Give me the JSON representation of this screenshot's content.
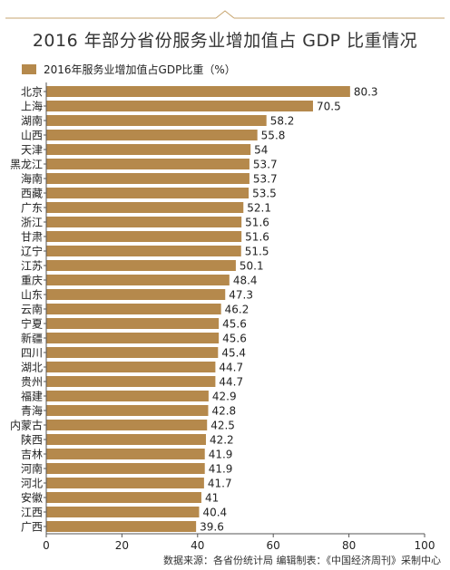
{
  "header": {
    "title": "2016 年部分省份服务业增加值占 GDP 比重情况"
  },
  "legend": {
    "label": "2016年服务业增加值占GDP比重（%）"
  },
  "footer": {
    "source": "数据来源：各省份统计局   编辑制表：《中国经济周刊》采制中心"
  },
  "colors": {
    "bar": "#B5894C",
    "axis": "#555555",
    "frame": "#C7A56F"
  },
  "chart_data": {
    "type": "bar",
    "orientation": "horizontal",
    "categories": [
      "北京",
      "上海",
      "湖南",
      "山西",
      "天津",
      "黑龙江",
      "海南",
      "西藏",
      "广东",
      "浙江",
      "甘肃",
      "辽宁",
      "江苏",
      "重庆",
      "山东",
      "云南",
      "宁夏",
      "新疆",
      "四川",
      "湖北",
      "贵州",
      "福建",
      "青海",
      "内蒙古",
      "陕西",
      "吉林",
      "河南",
      "河北",
      "安徽",
      "江西",
      "广西"
    ],
    "values": [
      80.3,
      70.5,
      58.2,
      55.8,
      54,
      53.7,
      53.7,
      53.5,
      52.1,
      51.6,
      51.6,
      51.5,
      50.1,
      48.4,
      47.3,
      46.2,
      45.6,
      45.6,
      45.4,
      44.7,
      44.7,
      42.9,
      42.8,
      42.5,
      42.2,
      41.9,
      41.9,
      41.7,
      41,
      40.4,
      39.6
    ],
    "value_labels": [
      "80.3",
      "70.5",
      "58.2",
      "55.8",
      "54",
      "53.7",
      "53.7",
      "53.5",
      "52.1",
      "51.6",
      "51.6",
      "51.5",
      "50.1",
      "48.4",
      "47.3",
      "46.2",
      "45.6",
      "45.6",
      "45.4",
      "44.7",
      "44.7",
      "42.9",
      "42.8",
      "42.5",
      "42.2",
      "41.9",
      "41.9",
      "41.7",
      "41",
      "40.4",
      "39.6"
    ],
    "series": [
      {
        "name": "2016年服务业增加值占GDP比重（%）"
      }
    ],
    "xlim": [
      0,
      100
    ],
    "xticks": [
      0,
      20,
      40,
      60,
      80,
      100
    ],
    "grid": false,
    "legend_position": "top-left"
  }
}
